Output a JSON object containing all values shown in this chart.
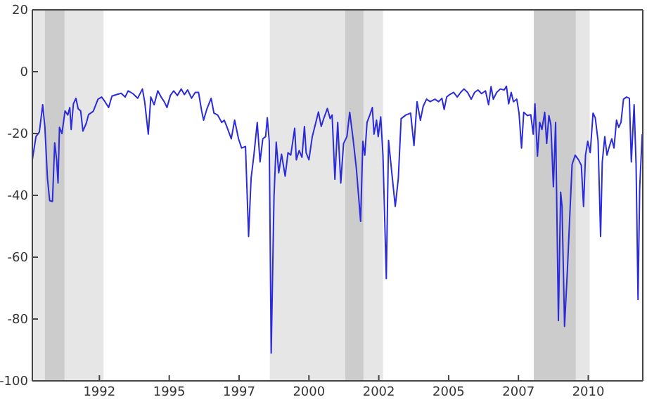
{
  "chart_data": {
    "type": "line",
    "x": [
      1990.0,
      1990.13,
      1990.25,
      1990.37,
      1990.45,
      1990.54,
      1990.62,
      1990.72,
      1990.8,
      1990.87,
      1990.92,
      1990.97,
      1991.06,
      1991.17,
      1991.27,
      1991.34,
      1991.39,
      1991.47,
      1991.56,
      1991.64,
      1991.73,
      1991.81,
      1991.93,
      1992.01,
      1992.18,
      1992.35,
      1992.48,
      1992.6,
      1992.73,
      1992.85,
      1993.02,
      1993.18,
      1993.32,
      1993.43,
      1993.6,
      1993.77,
      1993.94,
      1994.02,
      1994.15,
      1994.24,
      1994.36,
      1994.49,
      1994.61,
      1994.72,
      1994.82,
      1994.94,
      1995.06,
      1995.19,
      1995.33,
      1995.44,
      1995.56,
      1995.7,
      1995.83,
      1995.95,
      1996.06,
      1996.13,
      1996.25,
      1996.4,
      1996.5,
      1996.63,
      1996.78,
      1996.87,
      1996.97,
      1997.12,
      1997.24,
      1997.38,
      1997.49,
      1997.63,
      1997.74,
      1997.83,
      1997.93,
      1998.05,
      1998.15,
      1998.25,
      1998.35,
      1998.41,
      1998.48,
      1998.55,
      1998.65,
      1998.73,
      1998.82,
      1998.92,
      1999.05,
      1999.15,
      1999.25,
      1999.39,
      1999.45,
      1999.55,
      1999.65,
      1999.74,
      1999.8,
      1999.9,
      2000.02,
      2000.14,
      2000.24,
      2000.34,
      2000.44,
      2000.56,
      2000.66,
      2000.73,
      2000.83,
      2000.93,
      2001.04,
      2001.14,
      2001.26,
      2001.36,
      2001.48,
      2001.6,
      2001.75,
      2001.83,
      2001.9,
      2001.98,
      2002.08,
      2002.17,
      2002.23,
      2002.32,
      2002.38,
      2002.47,
      2002.55,
      2002.67,
      2002.75,
      2002.87,
      2002.99,
      2003.1,
      2003.2,
      2003.37,
      2003.54,
      2003.66,
      2003.77,
      2003.89,
      2003.99,
      2004.11,
      2004.24,
      2004.41,
      2004.54,
      2004.66,
      2004.74,
      2004.83,
      2004.94,
      2005.08,
      2005.21,
      2005.33,
      2005.45,
      2005.58,
      2005.71,
      2005.83,
      2005.95,
      2006.08,
      2006.22,
      2006.33,
      2006.42,
      2006.5,
      2006.62,
      2006.75,
      2006.89,
      2006.97,
      2007.05,
      2007.14,
      2007.22,
      2007.34,
      2007.42,
      2007.51,
      2007.59,
      2007.72,
      2007.84,
      2007.93,
      2007.99,
      2008.08,
      2008.16,
      2008.24,
      2008.34,
      2008.41,
      2008.49,
      2008.56,
      2008.65,
      2008.73,
      2008.83,
      2008.91,
      2008.96,
      2009.05,
      2009.15,
      2009.23,
      2009.32,
      2009.43,
      2009.55,
      2009.65,
      2009.73,
      2009.8,
      2009.88,
      2009.97,
      2010.07,
      2010.15,
      2010.25,
      2010.34,
      2010.4,
      2010.49,
      2010.57,
      2010.66,
      2010.74,
      2010.82,
      2010.91,
      2010.99,
      2011.07,
      2011.16,
      2011.27,
      2011.37,
      2011.44,
      2011.54,
      2011.61,
      2011.68,
      2011.74,
      2011.83
    ],
    "series": [
      {
        "color": "#2b2bdc",
        "values": [
          -28.5,
          -21,
          -19.5,
          -10.7,
          -18,
          -34.5,
          -41.7,
          -42,
          -23,
          -28.5,
          -36,
          -18,
          -20,
          -12.7,
          -14,
          -11.6,
          -18.7,
          -10.4,
          -8.6,
          -12,
          -12.7,
          -19.2,
          -16.7,
          -13.9,
          -12.8,
          -8.9,
          -8.2,
          -9.7,
          -11.6,
          -7.9,
          -7.4,
          -7,
          -8.2,
          -6.2,
          -7.1,
          -8.6,
          -5.6,
          -9.7,
          -20.2,
          -8.2,
          -10.7,
          -6.2,
          -8.2,
          -9.7,
          -11.6,
          -7.7,
          -6.2,
          -7.7,
          -5.6,
          -7.4,
          -5.9,
          -8.6,
          -6.7,
          -6.7,
          -12.7,
          -15.7,
          -12,
          -8.6,
          -13.4,
          -14,
          -16.4,
          -15.7,
          -18,
          -21.7,
          -15.7,
          -21.7,
          -24.7,
          -24.2,
          -53.3,
          -34.5,
          -27,
          -16.4,
          -29.2,
          -21.7,
          -21,
          -14.9,
          -22.5,
          -91,
          -40.5,
          -22.8,
          -32.7,
          -26.7,
          -33.8,
          -26.2,
          -27,
          -18.3,
          -28.5,
          -25.5,
          -27.7,
          -17.7,
          -26.2,
          -28.5,
          -21,
          -16.7,
          -13,
          -17.7,
          -14.9,
          -11.9,
          -15.2,
          -14,
          -34.8,
          -16.4,
          -36,
          -23.2,
          -21,
          -13.1,
          -21.7,
          -31.5,
          -48.4,
          -22.5,
          -27,
          -16.4,
          -14,
          -11.6,
          -20.2,
          -15.7,
          -21,
          -14.6,
          -27,
          -66.9,
          -22.2,
          -33,
          -43.6,
          -34.5,
          -15.2,
          -14,
          -13.4,
          -23.9,
          -9.7,
          -15.7,
          -11.2,
          -8.9,
          -9.7,
          -8.9,
          -9.7,
          -8.6,
          -12.2,
          -8.2,
          -7.4,
          -6.7,
          -8.2,
          -6.7,
          -5.6,
          -6.7,
          -8.9,
          -6.7,
          -5.9,
          -7.1,
          -6.2,
          -10.7,
          -4.8,
          -8.9,
          -6.7,
          -5.6,
          -5.9,
          -4.7,
          -10.4,
          -6.7,
          -9.7,
          -8.9,
          -13.4,
          -24.7,
          -13.1,
          -14.2,
          -13.9,
          -20.2,
          -10.4,
          -27.3,
          -16.4,
          -18.7,
          -13.1,
          -23.2,
          -14.2,
          -17.2,
          -37.2,
          -16.4,
          -80.5,
          -39,
          -43.6,
          -82.4,
          -64.6,
          -48.1,
          -30,
          -27,
          -28.5,
          -30.3,
          -43.6,
          -27,
          -22.5,
          -26.2,
          -13.4,
          -14.9,
          -22.5,
          -53.3,
          -29.2,
          -21,
          -27,
          -24,
          -21.7,
          -24.7,
          -15.7,
          -18,
          -16.4,
          -8.9,
          -8.2,
          -8.6,
          -29.2,
          -10.7,
          -30,
          -73.7,
          -37.5,
          -20.2
        ]
      }
    ],
    "xlim": [
      1990,
      2011.85
    ],
    "xticks": [
      {
        "value": 1992.4,
        "label": "1992"
      },
      {
        "value": 1994.9,
        "label": "1995"
      },
      {
        "value": 1997.4,
        "label": "1997"
      },
      {
        "value": 1999.9,
        "label": "2000"
      },
      {
        "value": 2002.4,
        "label": "2002"
      },
      {
        "value": 2004.9,
        "label": "2005"
      },
      {
        "value": 2007.4,
        "label": "2007"
      },
      {
        "value": 2009.9,
        "label": "2010"
      }
    ],
    "ylim": [
      -100,
      20
    ],
    "yticks": [
      -100,
      -80,
      -60,
      -40,
      -20,
      0,
      20
    ],
    "bands": [
      {
        "axis": "x",
        "from": 1990,
        "to": 1992.55,
        "color": "#e6e6e6"
      },
      {
        "axis": "x",
        "from": 1998.5,
        "to": 2002.55,
        "color": "#e6e6e6"
      },
      {
        "axis": "x",
        "from": 2007.95,
        "to": 2009.95,
        "color": "#e6e6e6"
      },
      {
        "axis": "x",
        "from": 1990.45,
        "to": 1991.15,
        "color": "#cccccc"
      },
      {
        "axis": "x",
        "from": 2001.2,
        "to": 2001.85,
        "color": "#cccccc"
      },
      {
        "axis": "x",
        "from": 2007.95,
        "to": 2009.45,
        "color": "#cccccc"
      }
    ],
    "grid": false,
    "legend": false,
    "marker": "none",
    "line_style": "solid"
  }
}
